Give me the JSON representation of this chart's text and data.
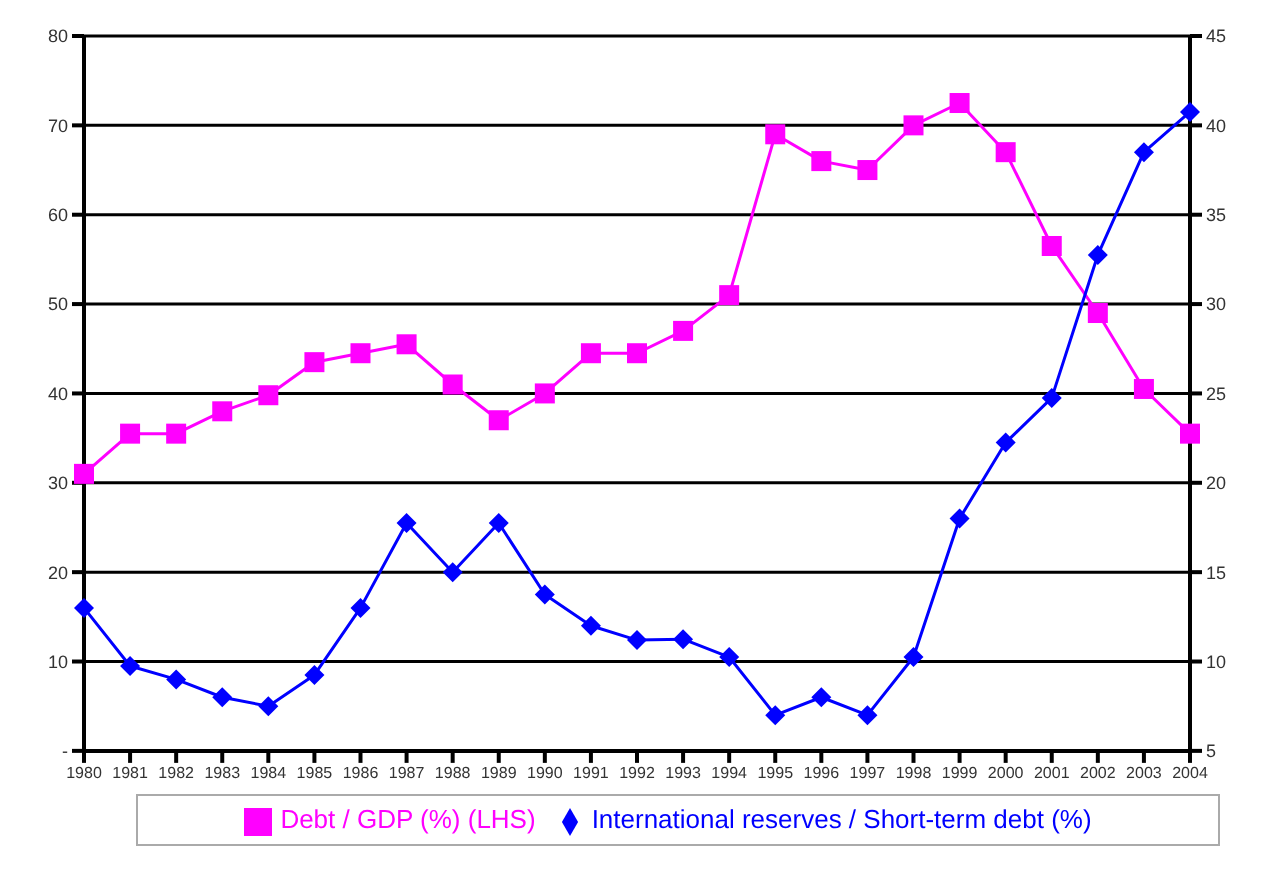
{
  "chart_data": {
    "type": "line",
    "categories": [
      "1980",
      "1981",
      "1982",
      "1983",
      "1984",
      "1985",
      "1986",
      "1987",
      "1988",
      "1989",
      "1990",
      "1991",
      "1992",
      "1993",
      "1994",
      "1995",
      "1996",
      "1997",
      "1998",
      "1999",
      "2000",
      "2001",
      "2002",
      "2003",
      "2004"
    ],
    "series": [
      {
        "name": "Debt / GDP (%) (LHS)",
        "color": "#ff00ff",
        "marker": "square",
        "values": [
          31,
          35.5,
          35.5,
          38,
          39.8,
          43.5,
          44.5,
          45.5,
          41,
          37,
          40,
          44.5,
          44.5,
          47,
          51,
          69,
          66,
          65,
          70,
          72.5,
          67,
          56.5,
          49,
          40.5,
          35.5
        ]
      },
      {
        "name": "International reserves / Short-term debt  (%)",
        "color": "#0000ff",
        "marker": "diamond",
        "axis": "y2",
        "values": [
          13,
          9.75,
          9,
          8,
          7.5,
          9.25,
          13,
          17.75,
          15,
          17.75,
          13.75,
          12,
          11.2,
          11.25,
          10.25,
          7,
          8,
          7,
          10.25,
          18,
          22.25,
          24.75,
          32.75,
          38.5,
          40.75
        ]
      }
    ],
    "ylim": [
      0,
      80
    ],
    "yticks": [
      {
        "value": 0,
        "label": "-"
      },
      10,
      20,
      30,
      40,
      50,
      60,
      70,
      80
    ],
    "y2lim": [
      5,
      45
    ],
    "y2ticks": [
      5,
      10,
      15,
      20,
      25,
      30,
      35,
      40,
      45
    ],
    "grid": "y",
    "legend": "bottom",
    "line_style": "solid"
  }
}
